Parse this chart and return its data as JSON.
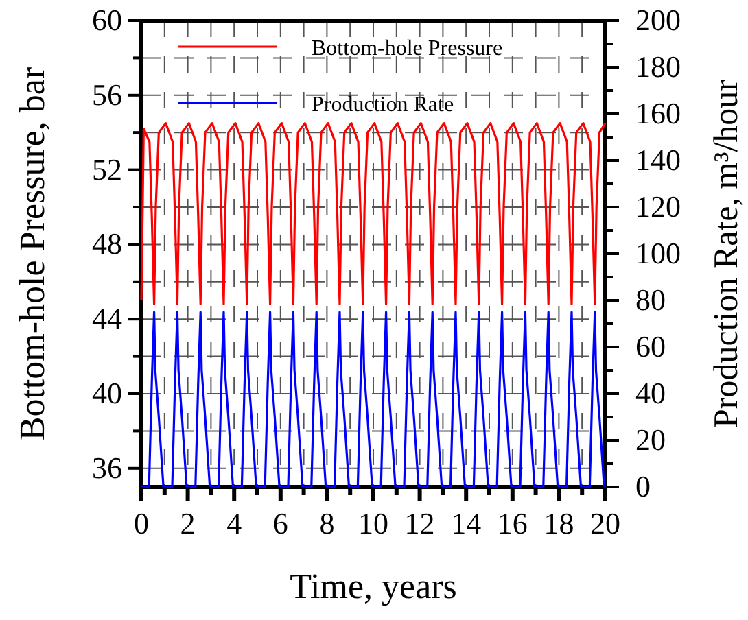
{
  "chart_data": {
    "type": "line",
    "xlabel": "Time, years",
    "ylabel": "Bottom-hole Pressure, bar",
    "y2label": "Production Rate, m³/hour",
    "xlim": [
      0,
      20
    ],
    "xticks": [
      0,
      {
        "value": 1,
        "label": null
      },
      2,
      {
        "value": 3,
        "label": null
      },
      4,
      {
        "value": 5,
        "label": null
      },
      6,
      {
        "value": 7,
        "label": null
      },
      8,
      {
        "value": 9,
        "label": null
      },
      10,
      {
        "value": 11,
        "label": null
      },
      12,
      {
        "value": 13,
        "label": null
      },
      14,
      {
        "value": 15,
        "label": null
      },
      16,
      {
        "value": 17,
        "label": null
      },
      18,
      {
        "value": 19,
        "label": null
      },
      20
    ],
    "ylim": [
      35,
      60
    ],
    "yticks": [
      36,
      {
        "value": 38,
        "label": null
      },
      40,
      {
        "value": 42,
        "label": null
      },
      44,
      {
        "value": 46,
        "label": null
      },
      48,
      {
        "value": 50,
        "label": null
      },
      52,
      {
        "value": 54,
        "label": null
      },
      56,
      {
        "value": 58,
        "label": null
      },
      60
    ],
    "y2lim": [
      0,
      200
    ],
    "y2ticks": [
      0,
      {
        "value": 10,
        "label": null
      },
      20,
      {
        "value": 30,
        "label": null
      },
      40,
      {
        "value": 50,
        "label": null
      },
      60,
      {
        "value": 70,
        "label": null
      },
      80,
      {
        "value": 90,
        "label": null
      },
      100,
      {
        "value": 110,
        "label": null
      },
      120,
      {
        "value": 130,
        "label": null
      },
      140,
      {
        "value": 150,
        "label": null
      },
      160,
      {
        "value": 170,
        "label": null
      },
      180,
      {
        "value": 190,
        "label": null
      },
      200
    ],
    "grid": true,
    "legend": "top",
    "line_style": "solid",
    "marker": "none",
    "series": [
      {
        "name": "Bottom-hole Pressure",
        "color": "#ff0000",
        "x": [
          0,
          0.1,
          0.35,
          0.45,
          0.55,
          0.62,
          0.75,
          1.05,
          1.35,
          1.45,
          1.55,
          1.62,
          1.75,
          2.05,
          2.35,
          2.45,
          2.55,
          2.62,
          2.75,
          3.05,
          3.35,
          3.45,
          3.55,
          3.62,
          3.75,
          4.05,
          4.35,
          4.45,
          4.55,
          4.62,
          4.75,
          5.05,
          5.35,
          5.45,
          5.55,
          5.62,
          5.75,
          6.05,
          6.35,
          6.45,
          6.55,
          6.62,
          6.75,
          7.05,
          7.35,
          7.45,
          7.55,
          7.62,
          7.75,
          8.05,
          8.35,
          8.45,
          8.55,
          8.62,
          8.75,
          9.05,
          9.35,
          9.45,
          9.55,
          9.62,
          9.75,
          10.05,
          10.35,
          10.45,
          10.55,
          10.62,
          10.75,
          11.05,
          11.35,
          11.45,
          11.55,
          11.62,
          11.75,
          12.05,
          12.35,
          12.45,
          12.55,
          12.62,
          12.75,
          13.05,
          13.35,
          13.45,
          13.55,
          13.62,
          13.75,
          14.05,
          14.35,
          14.45,
          14.55,
          14.62,
          14.75,
          15.05,
          15.35,
          15.45,
          15.55,
          15.62,
          15.75,
          16.05,
          16.35,
          16.45,
          16.55,
          16.62,
          16.75,
          17.05,
          17.35,
          17.45,
          17.55,
          17.62,
          17.75,
          18.05,
          18.35,
          18.45,
          18.55,
          18.62,
          18.75,
          19.05,
          19.35,
          19.45,
          19.55,
          19.62,
          19.75,
          20
        ],
        "values": [
          45,
          54.2,
          53.5,
          49.5,
          44.8,
          50,
          54,
          54.5,
          53.5,
          49.5,
          44.8,
          50,
          54,
          54.5,
          53.5,
          49.5,
          44.8,
          50,
          54,
          54.5,
          53.5,
          49.5,
          44.8,
          50,
          54,
          54.5,
          53.5,
          49.5,
          44.8,
          50,
          54,
          54.5,
          53.5,
          49.5,
          44.8,
          50,
          54,
          54.5,
          53.5,
          49.5,
          44.8,
          50,
          54,
          54.5,
          53.5,
          49.5,
          44.8,
          50,
          54,
          54.5,
          53.5,
          49.5,
          44.8,
          50,
          54,
          54.5,
          53.5,
          49.5,
          44.8,
          50,
          54,
          54.5,
          53.5,
          49.5,
          44.8,
          50,
          54,
          54.5,
          53.5,
          49.5,
          44.8,
          50,
          54,
          54.5,
          53.5,
          49.5,
          44.8,
          50,
          54,
          54.5,
          53.5,
          49.5,
          44.8,
          50,
          54,
          54.5,
          53.5,
          49.5,
          44.8,
          50,
          54,
          54.5,
          53.5,
          49.5,
          44.8,
          50,
          54,
          54.5,
          53.5,
          49.5,
          44.8,
          50,
          54,
          54.5,
          53.5,
          49.5,
          44.8,
          50,
          54,
          54.5,
          53.5,
          49.5,
          44.8,
          50,
          54,
          54.5,
          53.5,
          49.5,
          44.8,
          50,
          54,
          54.5
        ]
      },
      {
        "name": "Production Rate",
        "color": "#0000ff",
        "axis": "y2",
        "x": [
          0,
          0.33,
          0.45,
          0.55,
          0.6,
          0.75,
          0.95,
          1.33,
          1.45,
          1.55,
          1.6,
          1.75,
          1.95,
          2.33,
          2.45,
          2.55,
          2.6,
          2.75,
          2.95,
          3.33,
          3.45,
          3.55,
          3.6,
          3.75,
          3.95,
          4.33,
          4.45,
          4.55,
          4.6,
          4.75,
          4.95,
          5.33,
          5.45,
          5.55,
          5.6,
          5.75,
          5.95,
          6.33,
          6.45,
          6.55,
          6.6,
          6.75,
          6.95,
          7.33,
          7.45,
          7.55,
          7.6,
          7.75,
          7.95,
          8.33,
          8.45,
          8.55,
          8.6,
          8.75,
          8.95,
          9.33,
          9.45,
          9.55,
          9.6,
          9.75,
          9.95,
          10.33,
          10.45,
          10.55,
          10.6,
          10.75,
          10.95,
          11.33,
          11.45,
          11.55,
          11.6,
          11.75,
          11.95,
          12.33,
          12.45,
          12.55,
          12.6,
          12.75,
          12.95,
          13.33,
          13.45,
          13.55,
          13.6,
          13.75,
          13.95,
          14.33,
          14.45,
          14.55,
          14.6,
          14.75,
          14.95,
          15.33,
          15.45,
          15.55,
          15.6,
          15.75,
          15.95,
          16.33,
          16.45,
          16.55,
          16.6,
          16.75,
          16.95,
          17.33,
          17.45,
          17.55,
          17.6,
          17.75,
          17.95,
          18.33,
          18.45,
          18.55,
          18.6,
          18.75,
          18.95,
          19.33,
          19.45,
          19.55,
          19.6,
          19.75,
          19.95
        ],
        "values": [
          0,
          0,
          45,
          75,
          50,
          30,
          0,
          0,
          45,
          75,
          50,
          30,
          0,
          0,
          45,
          75,
          50,
          30,
          0,
          0,
          45,
          75,
          50,
          30,
          0,
          0,
          45,
          75,
          50,
          30,
          0,
          0,
          45,
          75,
          50,
          30,
          0,
          0,
          45,
          75,
          50,
          30,
          0,
          0,
          45,
          75,
          50,
          30,
          0,
          0,
          45,
          75,
          50,
          30,
          0,
          0,
          45,
          75,
          50,
          30,
          0,
          0,
          45,
          75,
          50,
          30,
          0,
          0,
          45,
          75,
          50,
          30,
          0,
          0,
          45,
          75,
          50,
          30,
          0,
          0,
          45,
          75,
          50,
          30,
          0,
          0,
          45,
          75,
          50,
          30,
          0,
          0,
          45,
          75,
          50,
          30,
          0,
          0,
          45,
          75,
          50,
          30,
          0,
          0,
          45,
          75,
          50,
          30,
          0,
          0,
          45,
          75,
          50,
          30,
          0,
          0,
          45,
          75,
          50,
          30,
          0
        ]
      }
    ]
  }
}
